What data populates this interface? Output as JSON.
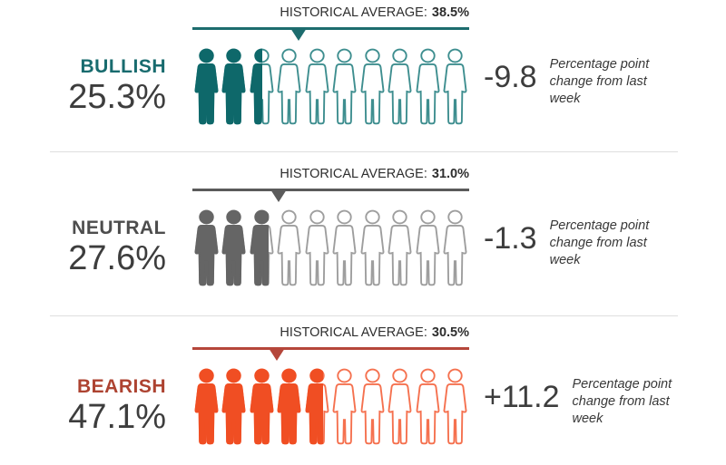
{
  "chart_data": {
    "type": "pictogram",
    "icons_per_row": 10,
    "percent_per_icon": 10,
    "legend_note": "filled person icons represent current sentiment percent; triangle marker on line shows historical average",
    "rows": [
      {
        "id": "bullish",
        "label": "BULLISH",
        "value_percent": 25.3,
        "value_label": "25.3%",
        "historical_average_percent": 38.5,
        "avg_prefix": "HISTORICAL AVERAGE:",
        "avg_value_label": "38.5%",
        "change_value": -9.8,
        "change_label": "-9.8",
        "change_desc": "Percentage point change from last week",
        "colors": {
          "fill": "#0e686a",
          "outline": "#3e8e8f",
          "label": "#186b6e",
          "line": "#1d6c6e"
        }
      },
      {
        "id": "neutral",
        "label": "NEUTRAL",
        "value_percent": 27.6,
        "value_label": "27.6%",
        "historical_average_percent": 31.0,
        "avg_prefix": "HISTORICAL AVERAGE:",
        "avg_value_label": "31.0%",
        "change_value": -1.3,
        "change_label": "-1.3",
        "change_desc": "Percentage point change from last week",
        "colors": {
          "fill": "#656565",
          "outline": "#9e9e9e",
          "label": "#4d4d4d",
          "line": "#5b5b5b"
        }
      },
      {
        "id": "bearish",
        "label": "BEARISH",
        "value_percent": 47.1,
        "value_label": "47.1%",
        "historical_average_percent": 30.5,
        "avg_prefix": "HISTORICAL AVERAGE:",
        "avg_value_label": "30.5%",
        "change_value": 11.2,
        "change_label": "+11.2",
        "change_desc": "Percentage point change from last week",
        "colors": {
          "fill": "#f04e23",
          "outline": "#f5714f",
          "label": "#ad4331",
          "line": "#b5463a"
        }
      }
    ]
  }
}
